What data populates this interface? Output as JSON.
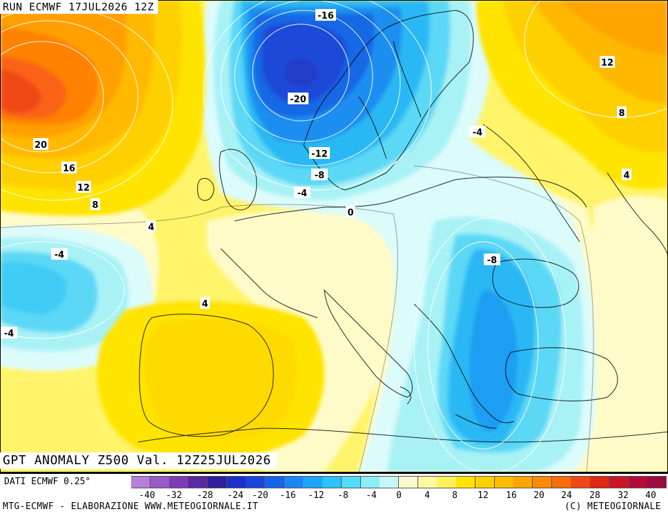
{
  "run_label": "RUN ECMWF 17JUL2026 12Z",
  "title": "GPT ANOMALY Z500 Val. 12Z25JUL2026",
  "dati": "DATI ECMWF 0.25°",
  "footer_left": "MTG-ECMWF - ELABORAZIONE WWW.METEOGIORNALE.IT",
  "footer_right": "(C) METEOGIORNALE",
  "contour_labels": [
    {
      "text": "-16"
    },
    {
      "text": "-20"
    },
    {
      "text": "-12"
    },
    {
      "text": "-8"
    },
    {
      "text": "-4"
    },
    {
      "text": "0"
    },
    {
      "text": "-4"
    },
    {
      "text": "12"
    },
    {
      "text": "8"
    },
    {
      "text": "4"
    },
    {
      "text": "20"
    },
    {
      "text": "16"
    },
    {
      "text": "12"
    },
    {
      "text": "8"
    },
    {
      "text": "4"
    },
    {
      "text": "-4"
    },
    {
      "text": "4"
    },
    {
      "text": "-4"
    },
    {
      "text": "-8"
    }
  ],
  "colorbar": {
    "ticks": [
      "-40",
      "-32",
      "-28",
      "-24",
      "-20",
      "-16",
      "-12",
      "-8",
      "-4",
      "0",
      "4",
      "8",
      "12",
      "16",
      "20",
      "24",
      "28",
      "32",
      "40"
    ],
    "colors": [
      "#b67fd8",
      "#9a5cc8",
      "#7e3cb4",
      "#5a28a0",
      "#2e1e9c",
      "#1e2ec8",
      "#1a46dc",
      "#1764ec",
      "#1a86f4",
      "#20a4f8",
      "#28c4fa",
      "#50dcfa",
      "#8aeef8",
      "#c4f8fa",
      "#fdfad0",
      "#fff8a0",
      "#fff258",
      "#ffe400",
      "#ffd000",
      "#ffbc00",
      "#ffa400",
      "#ff8a00",
      "#fc6c0e",
      "#f04814",
      "#e02814",
      "#cc1428",
      "#b40c38",
      "#9c0840"
    ]
  }
}
